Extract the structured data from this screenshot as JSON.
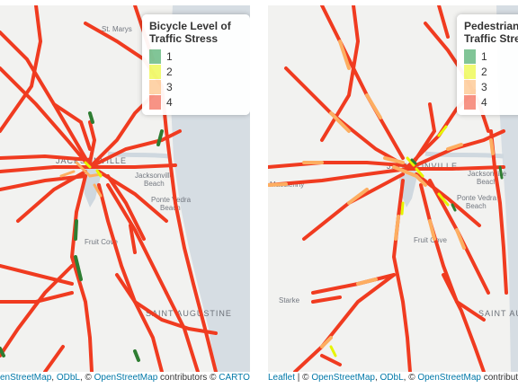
{
  "left_map": {
    "legend": {
      "title_line1": "Bicycle Level of",
      "title_line2": "Traffic Stress",
      "items": [
        {
          "label": "1",
          "color": "#1a9641"
        },
        {
          "label": "2",
          "color": "#e6f500"
        },
        {
          "label": "3",
          "color": "#fdae61"
        },
        {
          "label": "4",
          "color": "#f03b20"
        }
      ]
    },
    "place_labels": {
      "st_marys": "St. Marys",
      "jacksonville": "JACKSONVILLE",
      "jacksonville_beach_1": "Jacksonville",
      "jacksonville_beach_2": "Beach",
      "ponte_vedra_1": "Ponte Vedra",
      "ponte_vedra_2": "Beach",
      "fruit_cove": "Fruit Cove",
      "saint_augustine": "SAINT AUGUSTINE"
    },
    "attribution": {
      "prefix": "en",
      "osm": "StreetMap",
      "sep1": ", ",
      "odbl": "ODbL",
      "sep2": ", © ",
      "osm2": "OpenStreetMap",
      "contrib": " contributors © ",
      "carto": "CARTO"
    }
  },
  "right_map": {
    "legend": {
      "title_line1": "Pedestrian",
      "title_line2": "Traffic Stress",
      "items": [
        {
          "label": "1",
          "color": "#1a9641"
        },
        {
          "label": "2",
          "color": "#e6f500"
        },
        {
          "label": "3",
          "color": "#fdae61"
        },
        {
          "label": "4",
          "color": "#f03b20"
        }
      ]
    },
    "place_labels": {
      "macclenny": "Macclenny",
      "jacksonville": "JACKSONVILLE",
      "jacksonville_beach_1": "Jacksonville",
      "jacksonville_beach_2": "Beach",
      "ponte_vedra_1": "Ponte Vedra",
      "ponte_vedra_2": "Beach",
      "fruit_cove": "Fruit Cove",
      "starke": "Starke",
      "saint_augustine": "SAINT AUG"
    },
    "attribution": {
      "leaflet": "Leaflet",
      "sep0": " | © ",
      "osm": "OpenStreetMap",
      "sep1": ", ",
      "odbl": "ODbL",
      "sep2": ", © ",
      "osm2": "OpenStreetMap",
      "contrib": " contributors"
    }
  },
  "colors": {
    "ocean": "#d6dde3",
    "land": "#f2f2f0",
    "water": "#cfd8df",
    "high_stress": "#f03b20",
    "medium_stress": "#fdae61",
    "low_stress": "#e6f500",
    "lowest_stress": "#1a9641"
  }
}
